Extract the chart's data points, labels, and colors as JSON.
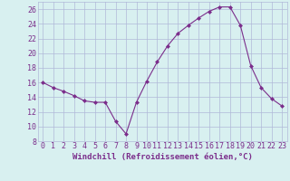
{
  "x": [
    0,
    1,
    2,
    3,
    4,
    5,
    6,
    7,
    8,
    9,
    10,
    11,
    12,
    13,
    14,
    15,
    16,
    17,
    18,
    19,
    20,
    21,
    22,
    23
  ],
  "y": [
    16.0,
    15.3,
    14.8,
    14.2,
    13.5,
    13.3,
    13.3,
    10.7,
    9.0,
    13.3,
    16.2,
    18.8,
    21.0,
    22.7,
    23.8,
    24.8,
    25.7,
    26.3,
    26.3,
    23.8,
    18.3,
    15.3,
    13.8,
    12.8
  ],
  "line_color": "#7b2d8b",
  "marker": "D",
  "marker_size": 2.0,
  "bg_color": "#d8f0f0",
  "grid_color": "#b0b8d8",
  "xlabel": "Windchill (Refroidissement éolien,°C)",
  "xlabel_color": "#7b2d8b",
  "xlabel_fontsize": 6.5,
  "tick_color": "#7b2d8b",
  "tick_fontsize": 6.0,
  "ylim": [
    8,
    27
  ],
  "yticks": [
    8,
    10,
    12,
    14,
    16,
    18,
    20,
    22,
    24,
    26
  ],
  "xlim": [
    -0.5,
    23.5
  ]
}
